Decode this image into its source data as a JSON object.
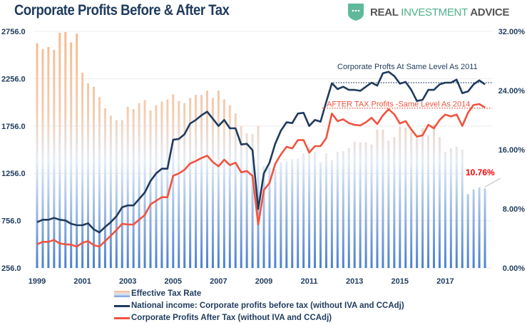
{
  "header": {
    "title": "Corporate Profits Before & After Tax",
    "logo": {
      "part1": "REAL",
      "part2": "INVESTMENT",
      "part3": "ADVICE"
    }
  },
  "chart_data": {
    "type": "bar+line",
    "title": "Corporate Profits Before & After Tax",
    "frequency": "quarterly",
    "start": "1999-Q1",
    "end": "2018-Q4",
    "x_tick_labels": [
      "1999",
      "2001",
      "2003",
      "2005",
      "2007",
      "2009",
      "2011",
      "2013",
      "2015",
      "2017"
    ],
    "left_axis": {
      "ticks": [
        "256.0",
        "756.0",
        "1256.0",
        "1756.0",
        "2256.0",
        "2756.0"
      ],
      "range": [
        256,
        2756
      ]
    },
    "right_axis": {
      "ticks": [
        "0.00%",
        "8.00%",
        "16.00%",
        "24.00%",
        "32.00%"
      ],
      "range": [
        0,
        32
      ]
    },
    "grid": true,
    "legend_placement": "bottom",
    "series": [
      {
        "name": "Effective Tax Rate",
        "type": "bar",
        "axis": "right",
        "colors": [
          "#f9b98a",
          "#4a7fcf"
        ],
        "values": [
          30.4,
          29.6,
          29.9,
          29.5,
          31.8,
          31.9,
          30.5,
          31.7,
          26.4,
          25.0,
          24.5,
          23.1,
          21.6,
          20.6,
          20.0,
          20.0,
          21.8,
          21.5,
          22.3,
          22.7,
          21.3,
          22.0,
          22.5,
          22.8,
          23.5,
          22.6,
          22.3,
          23.0,
          23.4,
          23.4,
          24.0,
          23.0,
          24.0,
          22.8,
          22.0,
          20.9,
          19.2,
          18.2,
          18.1,
          19.2,
          13.8,
          13.6,
          13.4,
          14.3,
          14.4,
          14.7,
          14.8,
          15.5,
          16.3,
          15.7,
          14.3,
          15.5,
          14.6,
          15.7,
          15.8,
          16.2,
          17.1,
          17.0,
          17.0,
          16.7,
          18.7,
          18.7,
          17.2,
          17.7,
          19.1,
          19.0,
          18.4,
          17.6,
          18.9,
          17.9,
          19.4,
          17.7,
          15.7,
          16.2,
          16.4,
          16.0,
          10.0,
          10.6,
          10.9,
          10.76
        ]
      },
      {
        "name": "National income: Corporate profits before tax (without IVA and CCAdj)",
        "type": "line",
        "axis": "left",
        "color": "#1f3b5e",
        "values": [
          740,
          766,
          766,
          785,
          766,
          758,
          723,
          708,
          708,
          728,
          665,
          632,
          690,
          740,
          803,
          898,
          917,
          917,
          984,
          1054,
          1175,
          1255,
          1305,
          1305,
          1611,
          1619,
          1669,
          1782,
          1820,
          1870,
          1907,
          1832,
          1757,
          1820,
          1732,
          1732,
          1561,
          1568,
          1501,
          879,
          1255,
          1368,
          1568,
          1707,
          1795,
          1787,
          1888,
          1895,
          1757,
          1820,
          1802,
          2008,
          2208,
          2146,
          2171,
          2138,
          2138,
          2128,
          2171,
          2214,
          2183,
          2314,
          2329,
          2284,
          2203,
          2221,
          2138,
          2020,
          2033,
          2138,
          2138,
          2196,
          2214,
          2214,
          2246,
          2103,
          2121,
          2196,
          2239,
          2196
        ]
      },
      {
        "name": "Corporate Profits After Tax (without IVA and CCAdj)",
        "type": "line",
        "axis": "left",
        "color": "#f0533f",
        "values": [
          507,
          532,
          532,
          552,
          514,
          507,
          502,
          482,
          522,
          540,
          497,
          482,
          540,
          597,
          657,
          723,
          715,
          715,
          766,
          816,
          928,
          966,
          1004,
          1004,
          1230,
          1255,
          1293,
          1360,
          1386,
          1418,
          1443,
          1375,
          1330,
          1400,
          1343,
          1368,
          1267,
          1280,
          1230,
          715,
          1079,
          1154,
          1355,
          1456,
          1536,
          1519,
          1607,
          1607,
          1476,
          1544,
          1544,
          1627,
          1888,
          1807,
          1827,
          1787,
          1769,
          1762,
          1795,
          1843,
          1777,
          1870,
          1933,
          1880,
          1782,
          1807,
          1719,
          1644,
          1657,
          1769,
          1732,
          1820,
          1877,
          1857,
          1877,
          1757,
          1895,
          1978,
          1988,
          1952
        ]
      }
    ],
    "annotations": [
      {
        "text": "Corporate Profts At Same Level As 2011",
        "color": "#1f3b5e",
        "level": 2214,
        "from_index": 52
      },
      {
        "text": "AFTER TAX Profits -Same Level As 2014",
        "color": "#f0533f",
        "level": 1975,
        "from_index": 50
      },
      {
        "text": "10.76%",
        "color": "#ff0000",
        "index": 79
      }
    ]
  }
}
